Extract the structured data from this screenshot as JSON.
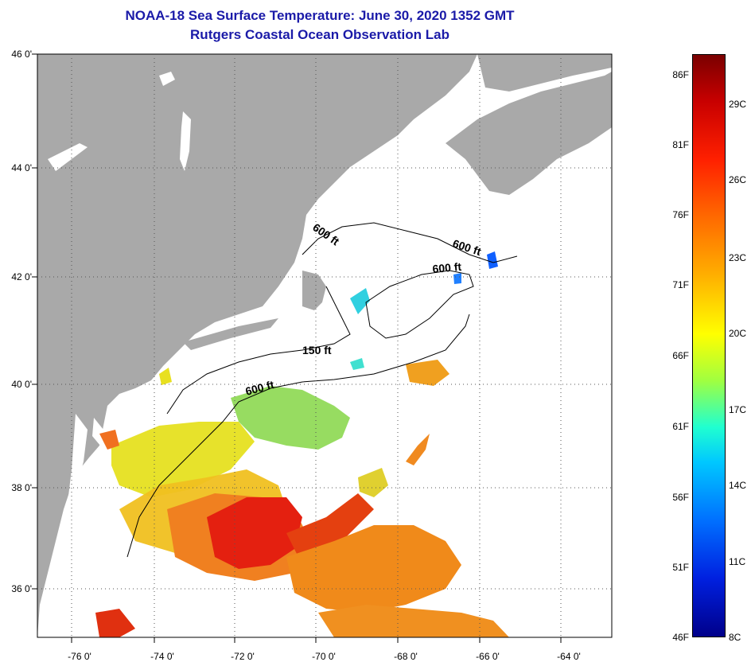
{
  "title": {
    "line1": "NOAA-18 Sea Surface Temperature:  June 30, 2020 1352 GMT",
    "line2": "Rutgers Coastal Ocean Observation Lab"
  },
  "axes": {
    "latitude_labels": [
      "46 0'",
      "44 0'",
      "42 0'",
      "40 0'",
      "38 0'",
      "36 0'"
    ],
    "longitude_labels": [
      "-76 0'",
      "-74 0'",
      "-72 0'",
      "-70 0'",
      "-68 0'",
      "-66 0'",
      "-64 0'"
    ]
  },
  "contour_labels": [
    "600 ft",
    "600 ft",
    "600 ft",
    "150 ft",
    "600 ft"
  ],
  "colorbar": {
    "fahrenheit": [
      "86F",
      "81F",
      "76F",
      "71F",
      "66F",
      "61F",
      "56F",
      "51F",
      "46F"
    ],
    "celsius": [
      "29C",
      "26C",
      "23C",
      "20C",
      "17C",
      "14C",
      "11C",
      "8C"
    ]
  },
  "colors": {
    "title": "#1a1aa8",
    "land": "#a9a9a9",
    "ocean": "#ffffff",
    "grid": "#555555"
  }
}
